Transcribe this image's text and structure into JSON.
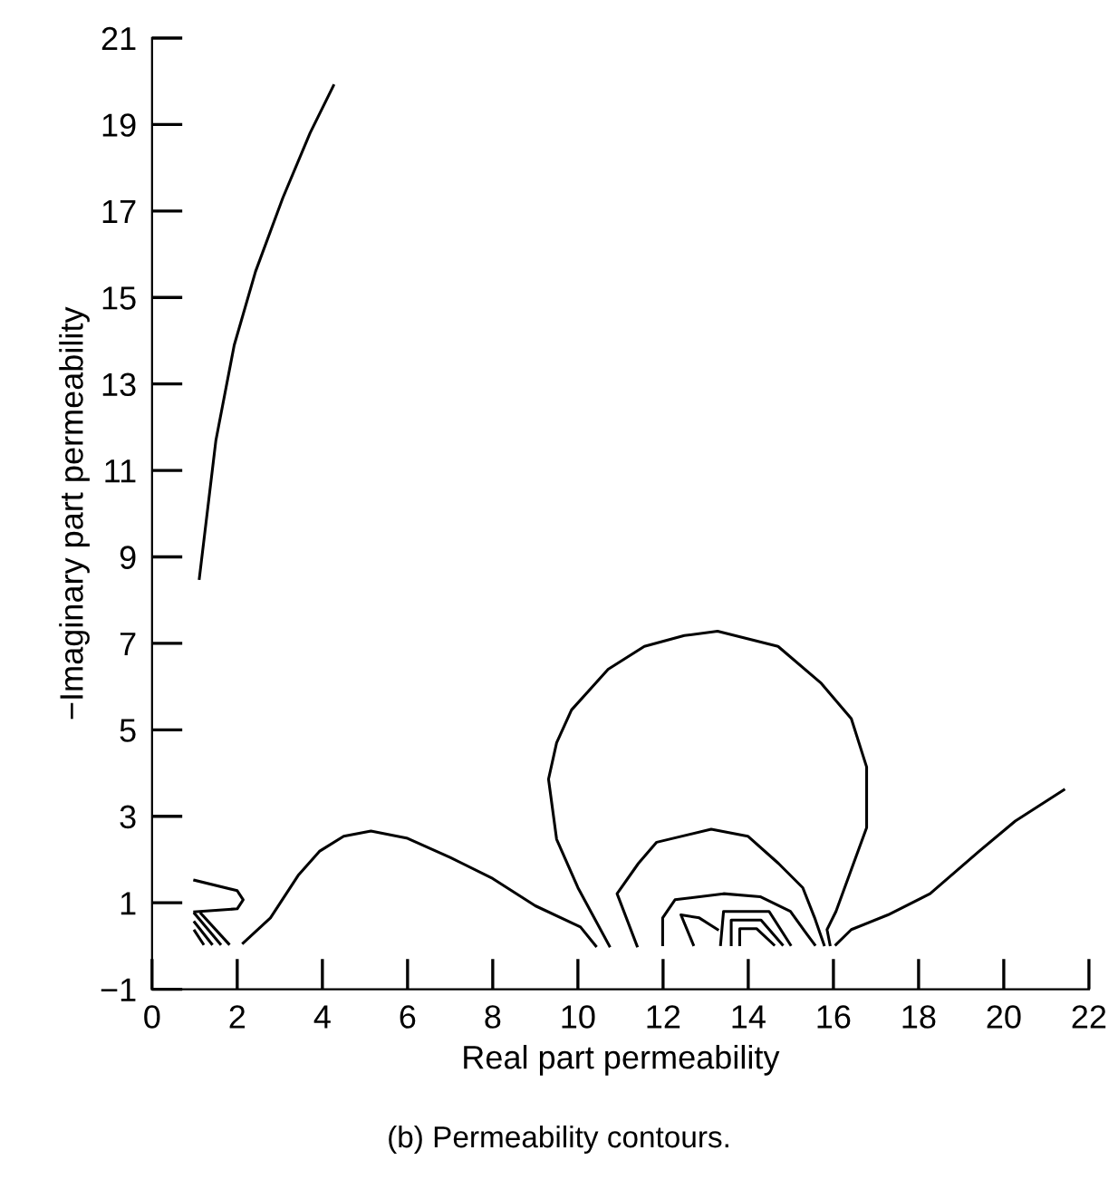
{
  "chart_data": {
    "type": "line",
    "xlabel": "Real part permeability",
    "ylabel": "−Imaginary part permeability",
    "annotations": [
      "(b) Permeability contours."
    ],
    "xlim": [
      0,
      22
    ],
    "ylim": [
      -1,
      21
    ],
    "xticks": [
      0,
      2,
      4,
      6,
      8,
      10,
      12,
      14,
      16,
      18,
      20,
      22
    ],
    "yticks": [
      {
        "value": -1,
        "label": "−1"
      },
      1,
      3,
      5,
      7,
      9,
      11,
      13,
      15,
      17,
      19,
      21
    ],
    "grid": false,
    "marker": "none",
    "line_style": "solid",
    "series": [
      {
        "color": "#000000",
        "x": [
          1.11,
          1.5,
          1.93,
          2.43,
          3.07,
          3.71,
          4.26
        ],
        "values": [
          8.5,
          11.7,
          13.9,
          15.6,
          17.3,
          18.8,
          19.9
        ]
      },
      {
        "color": "#000000",
        "x": [
          2.14,
          2.78,
          3.43,
          3.93,
          4.5,
          5.14,
          6.0,
          7.0,
          8.0,
          9.0,
          10.06,
          10.42
        ],
        "values": [
          0.07,
          0.65,
          1.63,
          2.19,
          2.54,
          2.66,
          2.49,
          2.05,
          1.56,
          0.93,
          0.44,
          0.0
        ]
      },
      {
        "color": "#000000",
        "x": [
          1.0,
          2.0,
          2.14,
          2.0,
          1.0
        ],
        "values": [
          1.52,
          1.28,
          1.07,
          0.86,
          0.79
        ]
      },
      {
        "color": "#000000",
        "x": [
          1.0,
          1.6
        ],
        "values": [
          0.75,
          0.05
        ]
      },
      {
        "color": "#000000",
        "x": [
          1.0,
          1.4
        ],
        "values": [
          0.55,
          0.05
        ]
      },
      {
        "color": "#000000",
        "x": [
          1.0,
          1.2
        ],
        "values": [
          0.35,
          0.05
        ]
      },
      {
        "color": "#000000",
        "x": [
          1.15,
          1.8
        ],
        "values": [
          0.75,
          0.05
        ]
      },
      {
        "color": "#000000",
        "x": [
          10.74,
          10.0,
          9.5,
          9.31,
          9.5,
          9.85,
          10.71,
          11.56,
          12.5,
          13.28,
          14.7,
          15.7,
          16.42,
          16.78,
          16.78,
          16.42,
          16.06,
          15.85,
          15.92
        ],
        "values": [
          0.0,
          1.35,
          2.47,
          3.86,
          4.7,
          5.46,
          6.4,
          6.93,
          7.18,
          7.28,
          6.93,
          6.09,
          5.26,
          4.14,
          2.74,
          1.77,
          0.8,
          0.38,
          0.03
        ]
      },
      {
        "color": "#000000",
        "x": [
          11.39,
          10.92,
          11.42,
          11.85,
          13.13,
          13.99,
          14.71,
          15.28,
          15.56,
          15.78
        ],
        "values": [
          0.0,
          1.21,
          1.91,
          2.4,
          2.7,
          2.54,
          1.91,
          1.35,
          0.65,
          0.03
        ]
      },
      {
        "color": "#000000",
        "x": [
          11.99,
          11.99,
          12.28,
          13.42,
          14.28,
          14.99,
          15.35,
          15.56
        ],
        "values": [
          0.03,
          0.65,
          1.07,
          1.21,
          1.14,
          0.8,
          0.31,
          0.03
        ]
      },
      {
        "color": "#000000",
        "x": [
          12.71,
          12.42,
          12.85,
          13.28
        ],
        "values": [
          0.03,
          0.72,
          0.65,
          0.38
        ]
      },
      {
        "color": "#000000",
        "x": [
          13.35,
          13.42,
          14.49,
          14.99
        ],
        "values": [
          0.03,
          0.8,
          0.8,
          0.03
        ]
      },
      {
        "color": "#000000",
        "x": [
          13.6,
          13.6,
          14.3,
          14.8
        ],
        "values": [
          0.03,
          0.6,
          0.6,
          0.03
        ]
      },
      {
        "color": "#000000",
        "x": [
          13.8,
          13.8,
          14.2,
          14.6
        ],
        "values": [
          0.03,
          0.4,
          0.4,
          0.03
        ]
      },
      {
        "color": "#000000",
        "x": [
          16.06,
          16.42,
          17.28,
          18.27,
          19.42,
          20.27,
          21.41
        ],
        "values": [
          0.03,
          0.38,
          0.72,
          1.21,
          2.19,
          2.89,
          3.61
        ]
      }
    ]
  }
}
